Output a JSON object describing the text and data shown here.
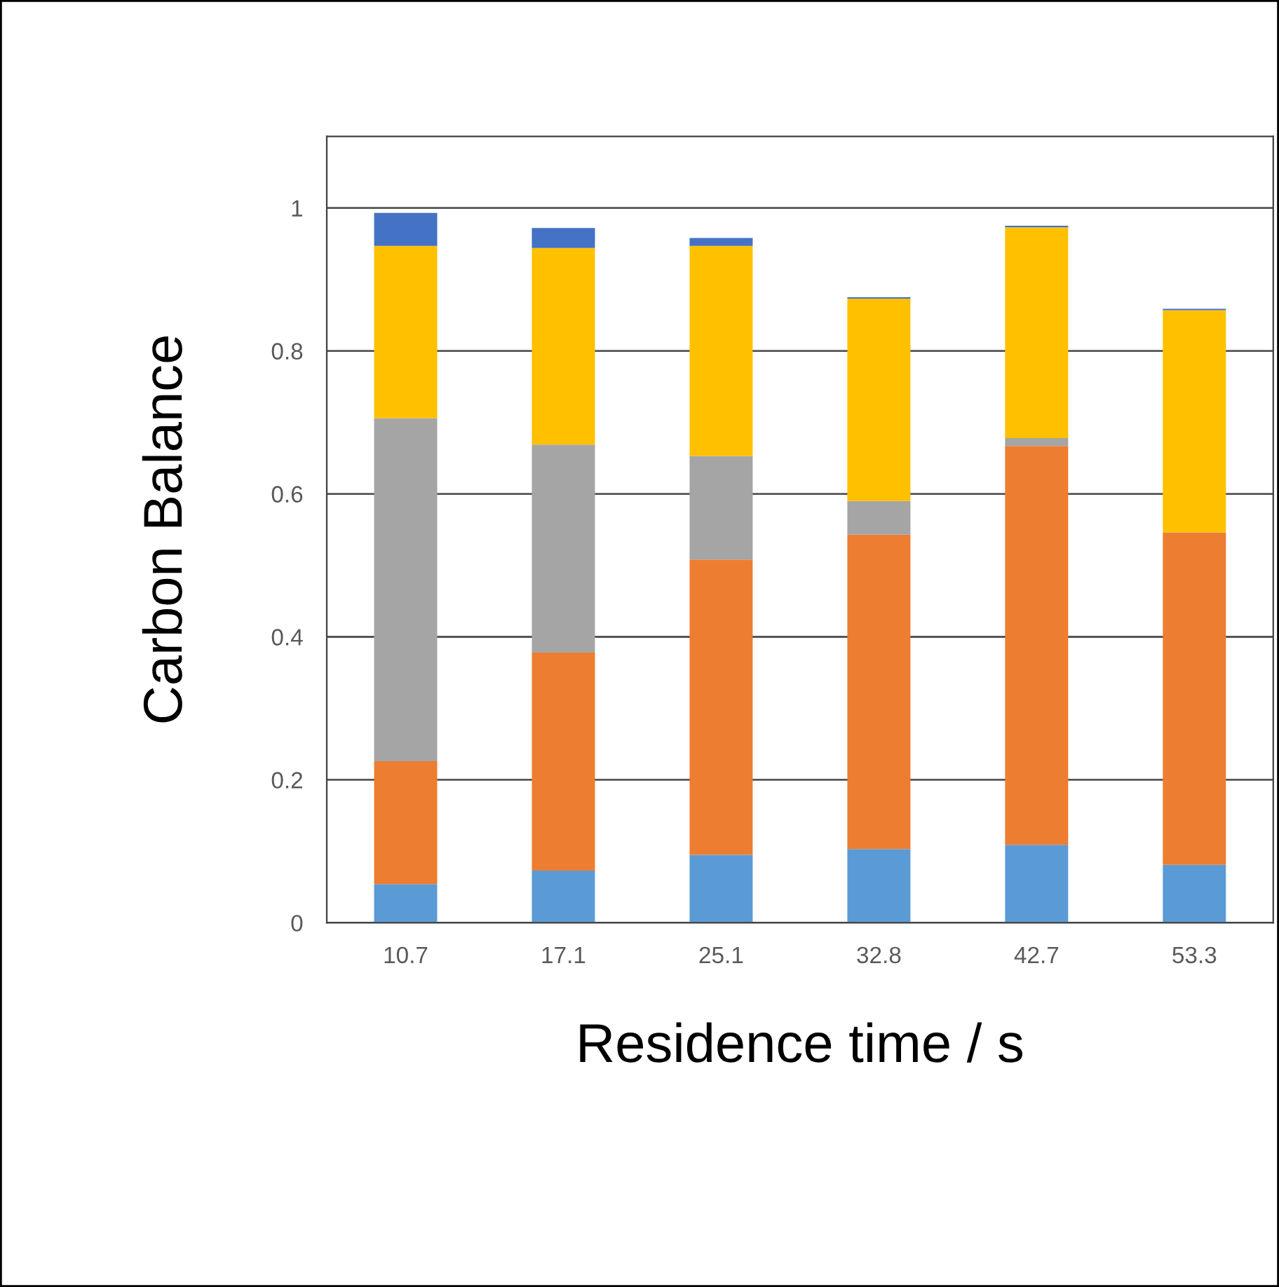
{
  "chart_data": {
    "type": "bar",
    "stacked": true,
    "xlabel": "Residence time / s",
    "ylabel": "Carbon Balance",
    "categories": [
      "10.7",
      "17.1",
      "25.1",
      "32.8",
      "42.7",
      "53.3"
    ],
    "series": [
      {
        "color": "#5b9bd5",
        "values": [
          0.054,
          0.073,
          0.095,
          0.103,
          0.109,
          0.081
        ]
      },
      {
        "color": "#ed7d31",
        "values": [
          0.172,
          0.305,
          0.413,
          0.44,
          0.558,
          0.465
        ]
      },
      {
        "color": "#a5a5a5",
        "values": [
          0.48,
          0.291,
          0.145,
          0.047,
          0.011,
          0
        ]
      },
      {
        "color": "#ffc000",
        "values": [
          0.241,
          0.275,
          0.294,
          0.283,
          0.295,
          0.311
        ]
      },
      {
        "color": "#4472c4",
        "values": [
          0.046,
          0.028,
          0.011,
          0.002,
          0.002,
          0.002
        ]
      }
    ],
    "ylim": [
      0,
      1.1
    ],
    "yticks": [
      0,
      0.2,
      0.4,
      0.6,
      0.8,
      1
    ],
    "grid": "y"
  }
}
